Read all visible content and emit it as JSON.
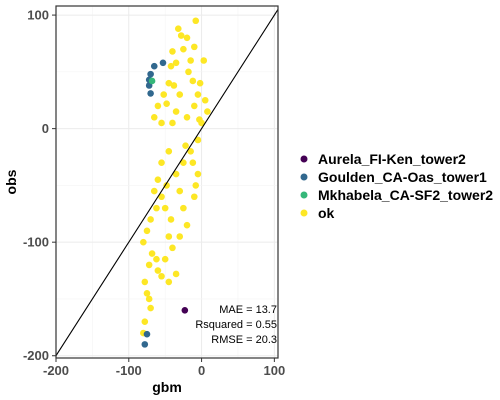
{
  "chart_data": {
    "type": "scatter",
    "title": "",
    "xlabel": "gbm",
    "ylabel": "obs",
    "xlim": [
      -200,
      105
    ],
    "ylim": [
      -202,
      108
    ],
    "x_ticks": [
      -200,
      -100,
      0,
      100
    ],
    "y_ticks": [
      -200,
      -100,
      0,
      100
    ],
    "x_tick_labels": [
      "-200",
      "-100",
      "0",
      "100"
    ],
    "y_tick_labels": [
      "-200",
      "-100",
      "0",
      "100"
    ],
    "grid": true,
    "reference_line": "y = x",
    "legend_position": "right",
    "annotations": [
      "MAE = 13.7",
      "Rsquared = 0.55",
      "RMSE = 20.3"
    ],
    "series": [
      {
        "name": "Aurela_FI-Ken_tower2",
        "color": "#440154",
        "points": [
          [
            -23,
            -160
          ]
        ]
      },
      {
        "name": "Goulden_CA-Oas_tower1",
        "color": "#31688E",
        "points": [
          [
            -53,
            58
          ],
          [
            -65,
            55
          ],
          [
            -70,
            48
          ],
          [
            -72,
            43
          ],
          [
            -72,
            38
          ],
          [
            -70,
            31
          ],
          [
            -75,
            -181
          ],
          [
            -78,
            -190
          ]
        ]
      },
      {
        "name": "Mkhabela_CA-SF2_tower2",
        "color": "#35B779",
        "points": [
          [
            -68,
            42
          ]
        ]
      },
      {
        "name": "ok",
        "color": "#FDE725",
        "points": [
          [
            -8,
            95
          ],
          [
            -20,
            80
          ],
          [
            -28,
            82
          ],
          [
            -25,
            70
          ],
          [
            -42,
            55
          ],
          [
            -35,
            58
          ],
          [
            -15,
            60
          ],
          [
            -10,
            72
          ],
          [
            -45,
            40
          ],
          [
            -38,
            38
          ],
          [
            -52,
            30
          ],
          [
            -60,
            20
          ],
          [
            -65,
            10
          ],
          [
            -55,
            5
          ],
          [
            -40,
            5
          ],
          [
            -20,
            10
          ],
          [
            -10,
            20
          ],
          [
            -5,
            30
          ],
          [
            -30,
            30
          ],
          [
            -2,
            40
          ],
          [
            5,
            25
          ],
          [
            8,
            15
          ],
          [
            0,
            5
          ],
          [
            -5,
            -10
          ],
          [
            -15,
            -20
          ],
          [
            -25,
            -30
          ],
          [
            -35,
            -40
          ],
          [
            -48,
            -50
          ],
          [
            -55,
            -60
          ],
          [
            -62,
            -70
          ],
          [
            -70,
            -80
          ],
          [
            -75,
            -90
          ],
          [
            -80,
            -100
          ],
          [
            -68,
            -110
          ],
          [
            -62,
            -115
          ],
          [
            -72,
            -120
          ],
          [
            -60,
            -125
          ],
          [
            -55,
            -130
          ],
          [
            -45,
            -135
          ],
          [
            -35,
            -128
          ],
          [
            -50,
            -115
          ],
          [
            -40,
            -105
          ],
          [
            -30,
            -95
          ],
          [
            -20,
            -85
          ],
          [
            -42,
            -80
          ],
          [
            -25,
            -70
          ],
          [
            -10,
            -60
          ],
          [
            -8,
            -50
          ],
          [
            -5,
            -40
          ],
          [
            -12,
            -30
          ],
          [
            -22,
            -15
          ],
          [
            -45,
            -20
          ],
          [
            -55,
            -30
          ],
          [
            -60,
            -45
          ],
          [
            -65,
            -55
          ],
          [
            -78,
            -135
          ],
          [
            -75,
            -145
          ],
          [
            -72,
            -150
          ],
          [
            -70,
            -158
          ],
          [
            -78,
            -170
          ],
          [
            -80,
            -180
          ],
          [
            -45,
            -95
          ],
          [
            -50,
            -70
          ],
          [
            -30,
            -55
          ],
          [
            -35,
            15
          ],
          [
            -48,
            22
          ],
          [
            -40,
            68
          ],
          [
            -32,
            88
          ],
          [
            -18,
            50
          ],
          [
            -12,
            42
          ],
          [
            3,
            60
          ],
          [
            -3,
            8
          ]
        ]
      }
    ]
  }
}
